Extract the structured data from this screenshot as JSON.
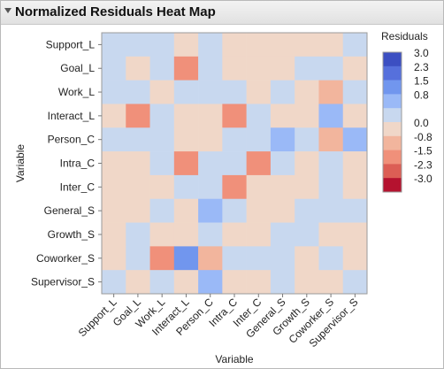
{
  "window": {
    "title": "Normalized Residuals Heat Map"
  },
  "chart_data": {
    "type": "heatmap",
    "xlabel": "Variable",
    "ylabel": "Variable",
    "x_categories": [
      "Support_L",
      "Goal_L",
      "Work_L",
      "Interact_L",
      "Person_C",
      "Intra_C",
      "Inter_C",
      "General_S",
      "Growth_S",
      "Coworker_S",
      "Supervisor_S"
    ],
    "y_categories": [
      "Support_L",
      "Goal_L",
      "Work_L",
      "Interact_L",
      "Person_C",
      "Intra_C",
      "Inter_C",
      "General_S",
      "Growth_S",
      "Coworker_S",
      "Supervisor_S"
    ],
    "values": [
      [
        0.6,
        0.6,
        0.6,
        -0.6,
        0.6,
        -0.6,
        -0.6,
        -0.6,
        -0.6,
        -0.6,
        0.6
      ],
      [
        0.6,
        -0.6,
        0.6,
        -1.4,
        0.6,
        -0.6,
        -0.6,
        -0.6,
        0.6,
        0.6,
        -0.6
      ],
      [
        0.6,
        0.6,
        -0.6,
        0.6,
        0.6,
        0.6,
        -0.6,
        0.6,
        -0.6,
        -1.3,
        0.6
      ],
      [
        -0.6,
        -1.4,
        0.6,
        -0.6,
        -0.6,
        -1.4,
        0.6,
        -0.6,
        -0.6,
        1.2,
        -0.6
      ],
      [
        0.6,
        0.6,
        0.6,
        -0.6,
        -0.6,
        0.6,
        0.6,
        1.2,
        0.6,
        -1.3,
        1.2
      ],
      [
        -0.6,
        -0.6,
        0.6,
        -1.4,
        0.6,
        0.6,
        -1.4,
        0.6,
        -0.6,
        0.6,
        -0.6
      ],
      [
        -0.6,
        -0.6,
        -0.6,
        0.6,
        0.6,
        -1.4,
        -0.6,
        -0.6,
        -0.6,
        0.6,
        -0.6
      ],
      [
        -0.6,
        -0.6,
        0.6,
        -0.6,
        1.2,
        0.6,
        -0.6,
        -0.6,
        0.6,
        0.6,
        0.6
      ],
      [
        -0.6,
        0.6,
        -0.6,
        -0.6,
        0.6,
        -0.6,
        -0.6,
        0.6,
        0.6,
        -0.6,
        -0.6
      ],
      [
        -0.6,
        0.6,
        -1.4,
        1.5,
        -1.3,
        0.6,
        0.6,
        0.6,
        -0.6,
        0.6,
        -0.6
      ],
      [
        0.6,
        -0.6,
        0.6,
        -0.6,
        1.2,
        -0.6,
        -0.6,
        0.6,
        -0.6,
        -0.6,
        0.6
      ]
    ],
    "legend": {
      "title": "Residuals",
      "placement": "right",
      "levels": [
        {
          "label": "3.0",
          "color": "#3c4fc2"
        },
        {
          "label": "2.3",
          "color": "#5670dc"
        },
        {
          "label": "1.5",
          "color": "#7196ee"
        },
        {
          "label": "0.8",
          "color": "#9ab9f7"
        },
        {
          "label": "",
          "color": "#c8d8ef"
        },
        {
          "label": "0.0",
          "color": "#f0d7c8"
        },
        {
          "label": "-0.8",
          "color": "#f2b59d"
        },
        {
          "label": "-1.5",
          "color": "#f0907a"
        },
        {
          "label": "-2.3",
          "color": "#dc5e55"
        },
        {
          "label": "-3.0",
          "color": "#b5122f"
        }
      ]
    }
  }
}
